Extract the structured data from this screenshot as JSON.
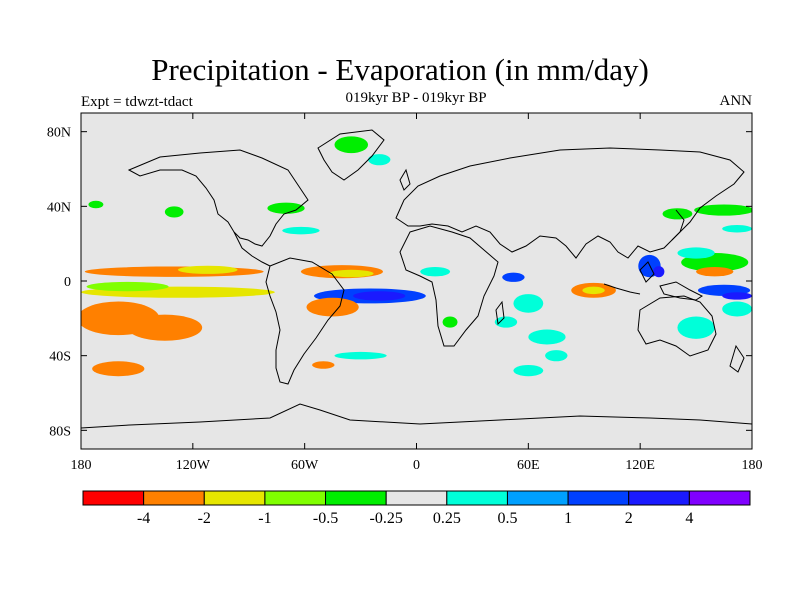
{
  "header": {
    "title": "Precipitation - Evaporation (in mm/day)",
    "subtitle": "019kyr BP - 019kyr BP",
    "left_label": "Expt = tdwzt-tdact",
    "right_label": "ANN"
  },
  "chart_data": {
    "type": "heatmap",
    "title": "Precipitation - Evaporation (in mm/day)",
    "subtitle": "019kyr BP - 019kyr BP",
    "xlabel": "",
    "ylabel": "",
    "xlim": [
      -180,
      180
    ],
    "ylim": [
      -90,
      90
    ],
    "lon_ticks": [
      {
        "value": -180,
        "label": "180"
      },
      {
        "value": -120,
        "label": "120W"
      },
      {
        "value": -60,
        "label": "60W"
      },
      {
        "value": 0,
        "label": "0"
      },
      {
        "value": 60,
        "label": "60E"
      },
      {
        "value": 120,
        "label": "120E"
      },
      {
        "value": 180,
        "label": "180"
      }
    ],
    "lat_ticks": [
      {
        "value": 80,
        "label": "80N"
      },
      {
        "value": 40,
        "label": "40N"
      },
      {
        "value": 0,
        "label": "0"
      },
      {
        "value": -40,
        "label": "40S"
      },
      {
        "value": -80,
        "label": "80S"
      }
    ],
    "background_color": "#e6e6e6",
    "colorbar": {
      "colors": [
        "#ff0000",
        "#ff8000",
        "#e6e600",
        "#80ff00",
        "#00ee00",
        "#e6e6e6",
        "#00ffd9",
        "#00a0ff",
        "#0040ff",
        "#1a1aff",
        "#8000ff"
      ],
      "labels": [
        "-4",
        "-2",
        "-1",
        "-0.5",
        "-0.25",
        "0.25",
        "0.5",
        "1",
        "2",
        "4"
      ]
    },
    "regions": [
      {
        "lon": -130,
        "lat": 5,
        "rx": 48,
        "ry": 2.8,
        "c": 1
      },
      {
        "lon": -128,
        "lat": -6,
        "rx": 52,
        "ry": 3.0,
        "c": 2
      },
      {
        "lon": -160,
        "lat": -20,
        "rx": 22,
        "ry": 9,
        "c": 1
      },
      {
        "lon": -155,
        "lat": -3,
        "rx": 22,
        "ry": 2.5,
        "c": 3
      },
      {
        "lon": -135,
        "lat": -25,
        "rx": 20,
        "ry": 7,
        "c": 1
      },
      {
        "lon": -160,
        "lat": -47,
        "rx": 14,
        "ry": 4,
        "c": 1
      },
      {
        "lon": -112,
        "lat": 6,
        "rx": 16,
        "ry": 2.2,
        "c": 2
      },
      {
        "lon": -40,
        "lat": 5,
        "rx": 22,
        "ry": 3.5,
        "c": 1
      },
      {
        "lon": -35,
        "lat": 4,
        "rx": 12,
        "ry": 2.0,
        "c": 2
      },
      {
        "lon": -25,
        "lat": -8,
        "rx": 30,
        "ry": 4.0,
        "c": 8
      },
      {
        "lon": -20,
        "lat": -8,
        "rx": 14,
        "ry": 2.5,
        "c": 9
      },
      {
        "lon": -45,
        "lat": -14,
        "rx": 14,
        "ry": 5.0,
        "c": 1
      },
      {
        "lon": -50,
        "lat": -45,
        "rx": 6,
        "ry": 2.0,
        "c": 1
      },
      {
        "lon": -30,
        "lat": -40,
        "rx": 14,
        "ry": 2.0,
        "c": 6
      },
      {
        "lon": -35,
        "lat": 73,
        "rx": 9,
        "ry": 4.5,
        "c": 4
      },
      {
        "lon": -20,
        "lat": 65,
        "rx": 6,
        "ry": 3.0,
        "c": 6
      },
      {
        "lon": -70,
        "lat": 39,
        "rx": 10,
        "ry": 3.0,
        "c": 4
      },
      {
        "lon": -130,
        "lat": 37,
        "rx": 5,
        "ry": 3.0,
        "c": 4
      },
      {
        "lon": -172,
        "lat": 41,
        "rx": 4,
        "ry": 2.0,
        "c": 4
      },
      {
        "lon": -62,
        "lat": 27,
        "rx": 10,
        "ry": 2.0,
        "c": 6
      },
      {
        "lon": 10,
        "lat": 5,
        "rx": 8,
        "ry": 2.5,
        "c": 6
      },
      {
        "lon": 18,
        "lat": -22,
        "rx": 4,
        "ry": 3.0,
        "c": 4
      },
      {
        "lon": 52,
        "lat": 2,
        "rx": 6,
        "ry": 2.5,
        "c": 8
      },
      {
        "lon": 60,
        "lat": -12,
        "rx": 8,
        "ry": 5.0,
        "c": 6
      },
      {
        "lon": 48,
        "lat": -22,
        "rx": 6,
        "ry": 3.0,
        "c": 6
      },
      {
        "lon": 70,
        "lat": -30,
        "rx": 10,
        "ry": 4.0,
        "c": 6
      },
      {
        "lon": 95,
        "lat": -5,
        "rx": 12,
        "ry": 4.0,
        "c": 1
      },
      {
        "lon": 95,
        "lat": -5,
        "rx": 6,
        "ry": 2.0,
        "c": 2
      },
      {
        "lon": 60,
        "lat": -48,
        "rx": 8,
        "ry": 3.0,
        "c": 6
      },
      {
        "lon": 75,
        "lat": -40,
        "rx": 6,
        "ry": 3.0,
        "c": 6
      },
      {
        "lon": 125,
        "lat": 8,
        "rx": 6,
        "ry": 6.0,
        "c": 8
      },
      {
        "lon": 130,
        "lat": 5,
        "rx": 3,
        "ry": 3.0,
        "c": 9
      },
      {
        "lon": 160,
        "lat": 10,
        "rx": 18,
        "ry": 5.0,
        "c": 4
      },
      {
        "lon": 160,
        "lat": 5,
        "rx": 10,
        "ry": 2.5,
        "c": 1
      },
      {
        "lon": 165,
        "lat": -5,
        "rx": 14,
        "ry": 3.0,
        "c": 8
      },
      {
        "lon": 172,
        "lat": -8,
        "rx": 8,
        "ry": 2.0,
        "c": 9
      },
      {
        "lon": 150,
        "lat": -25,
        "rx": 10,
        "ry": 6.0,
        "c": 6
      },
      {
        "lon": 172,
        "lat": -15,
        "rx": 8,
        "ry": 4.0,
        "c": 6
      },
      {
        "lon": 165,
        "lat": 38,
        "rx": 16,
        "ry": 3.0,
        "c": 4
      },
      {
        "lon": 140,
        "lat": 36,
        "rx": 8,
        "ry": 3.0,
        "c": 4
      },
      {
        "lon": 172,
        "lat": 28,
        "rx": 8,
        "ry": 2.0,
        "c": 6
      },
      {
        "lon": 150,
        "lat": 15,
        "rx": 10,
        "ry": 3.0,
        "c": 6
      }
    ]
  }
}
